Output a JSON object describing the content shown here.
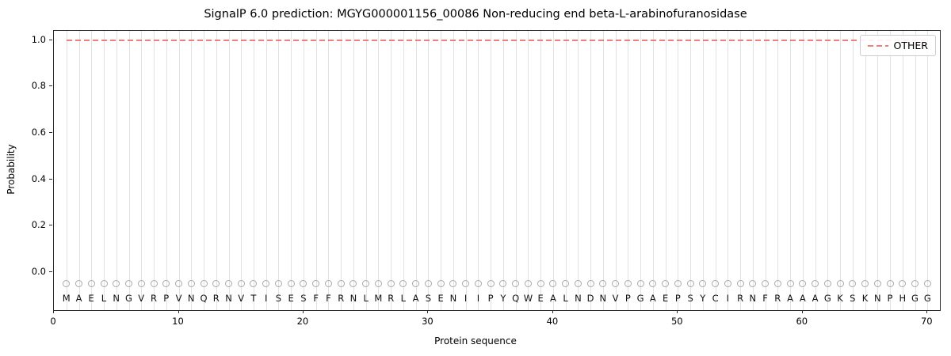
{
  "chart_data": {
    "type": "line",
    "title": "SignalP 6.0 prediction: MGYG000001156_00086 Non-reducing end beta-L-arabinofuranosidase",
    "xlabel": "Protein sequence",
    "ylabel": "Probability",
    "xlim": [
      0,
      71
    ],
    "ylim": [
      -0.165,
      1.04
    ],
    "xticks": [
      0,
      10,
      20,
      30,
      40,
      50,
      60,
      70
    ],
    "yticks": [
      0.0,
      0.2,
      0.4,
      0.6,
      0.8,
      1.0
    ],
    "sequence": "MAELNGVRPVNQRNVTISESFFRNLMRLASENIIPYQWEALNDNVPGAEPSYCIRNFRAAAGKSKNPHGG",
    "series": [
      {
        "name": "OTHER",
        "kind": "hline",
        "value": 1.0,
        "x_start": 1,
        "x_end": 70,
        "color": "#ee5d5d",
        "linestyle": "dashed"
      }
    ],
    "residue_marker": {
      "shape": "open-circle",
      "y": -0.05,
      "color": "#a9a9a9"
    },
    "residue_letter_y": -0.112,
    "grid": "vertical-per-residue",
    "gridline_color": "#e2e2e2",
    "legend": {
      "position": "upper-right",
      "entries": [
        {
          "label": "OTHER",
          "color": "#ee5d5d",
          "linestyle": "dashed"
        }
      ]
    }
  }
}
